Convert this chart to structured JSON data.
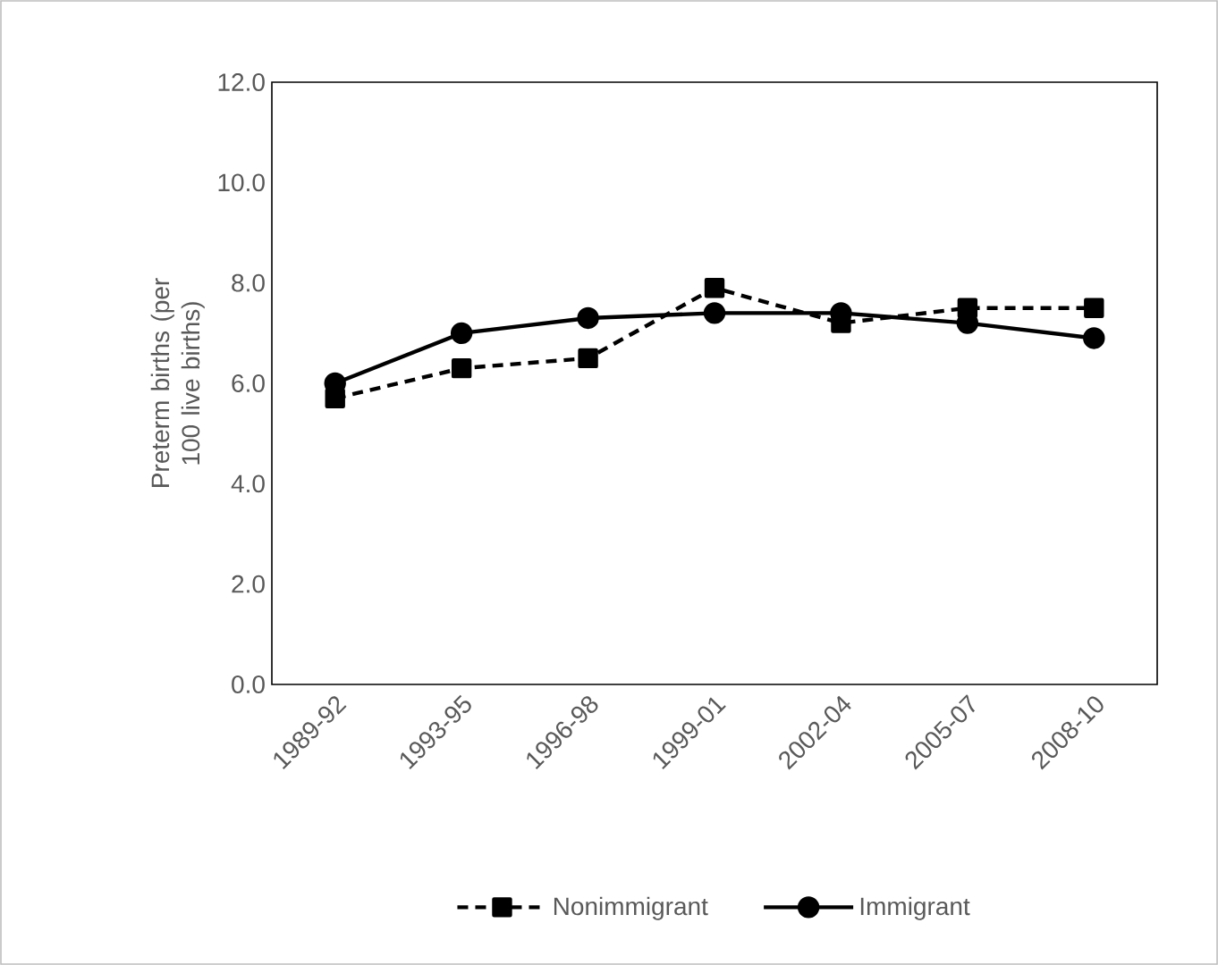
{
  "chart_data": {
    "type": "line",
    "ylabel": "Preterm births (per 100 live births)",
    "categories": [
      "1989-92",
      "1993-95",
      "1996-98",
      "1999-01",
      "2002-04",
      "2005-07",
      "2008-10"
    ],
    "series": [
      {
        "name": "Nonimmigrant",
        "color": "#000000",
        "marker": "square",
        "line_style": "dashed",
        "values": [
          5.7,
          6.3,
          6.5,
          7.9,
          7.2,
          7.5,
          7.5
        ]
      },
      {
        "name": "Immigrant",
        "color": "#000000",
        "marker": "circle",
        "line_style": "solid",
        "values": [
          6.0,
          7.0,
          7.3,
          7.4,
          7.4,
          7.2,
          6.9
        ]
      }
    ],
    "ylim": [
      0,
      12
    ],
    "yticks": [
      {
        "value": 0,
        "label": "0.0"
      },
      {
        "value": 2,
        "label": "2.0"
      },
      {
        "value": 4,
        "label": "4.0"
      },
      {
        "value": 6,
        "label": "6.0"
      },
      {
        "value": 8,
        "label": "8.0"
      },
      {
        "value": 10,
        "label": "10.0"
      },
      {
        "value": 12,
        "label": "12.0"
      }
    ],
    "grid": false,
    "legend": "bottom"
  }
}
